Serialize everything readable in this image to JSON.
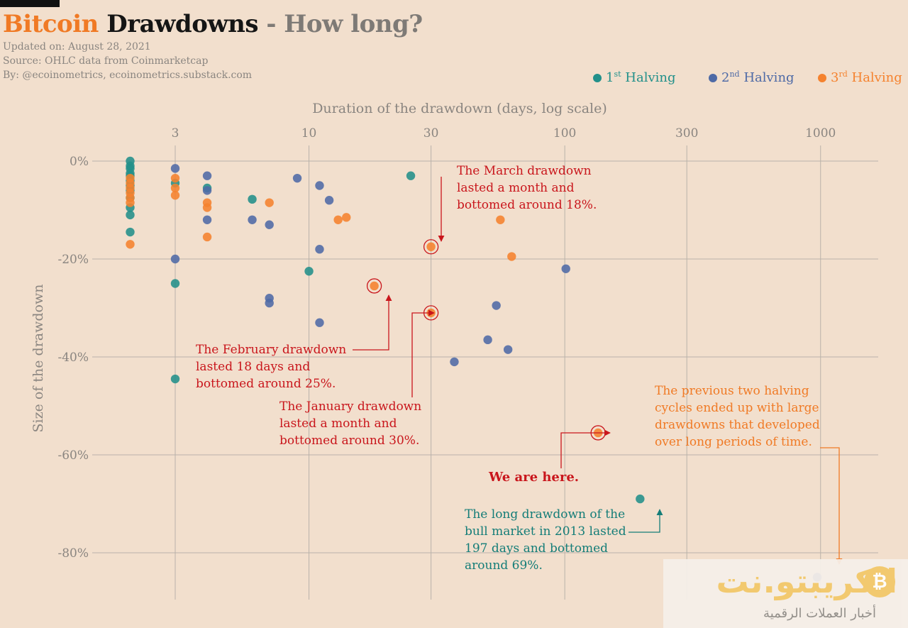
{
  "header": {
    "title_part1": "Bitcoin",
    "title_part2": "Drawdowns",
    "title_part3": "- How long?",
    "updated": "Updated on: August 28, 2021",
    "source": "Source: OHLC data from Coinmarketcap",
    "by": "By: @ecoinometrics, ecoinometrics.substack.com"
  },
  "legend": [
    {
      "num": "1",
      "sup": "st",
      "label": "Halving",
      "color": "#22908a"
    },
    {
      "num": "2",
      "sup": "nd",
      "label": "Halving",
      "color": "#4e6aa6"
    },
    {
      "num": "3",
      "sup": "rd",
      "label": "Halving",
      "color": "#f5822e"
    }
  ],
  "annotations": {
    "march": [
      "The March drawdown",
      "lasted a month and",
      "bottomed around 18%."
    ],
    "february": [
      "The February drawdown",
      "lasted 18 days and",
      "bottomed around 25%."
    ],
    "january": [
      "The January drawdown",
      "lasted a month and",
      "bottomed around 30%."
    ],
    "here": "We are here.",
    "previous": [
      "The previous two halving",
      "cycles ended up with large",
      "drawdowns that developed",
      "over long periods of time."
    ],
    "long2013": [
      "The long drawdown of the",
      "bull market in 2013 lasted",
      "197 days and bottomed",
      "around 69%."
    ]
  },
  "watermark": {
    "text": "الكريبتو.نت",
    "subtext": "أخبار العملات الرقمية",
    "coin": "₿"
  },
  "chart_data": {
    "type": "scatter",
    "xlabel": "Duration of the drawdown (days, log scale)",
    "ylabel": "Size of the drawdown",
    "x_scale": "log",
    "xlim": [
      1.3,
      1200
    ],
    "ylim": [
      -87,
      2
    ],
    "x_ticks": [
      3,
      10,
      30,
      100,
      300,
      1000
    ],
    "x_tick_labels": [
      "3",
      "10",
      "30",
      "100",
      "300",
      "1000"
    ],
    "y_ticks": [
      0,
      -20,
      -40,
      -60,
      -80
    ],
    "y_tick_labels": [
      "0%",
      "-20%",
      "-40%",
      "-60%",
      "-80%"
    ],
    "grid": true,
    "legend_position": "top-right",
    "series": [
      {
        "name": "1st Halving",
        "color": "#22908a",
        "points": [
          [
            2,
            0
          ],
          [
            2,
            -1
          ],
          [
            2,
            -1.5
          ],
          [
            2,
            -2.5
          ],
          [
            2,
            -3
          ],
          [
            2,
            -4
          ],
          [
            2,
            -5
          ],
          [
            2,
            -6
          ],
          [
            2,
            -7.5
          ],
          [
            2,
            -9.5
          ],
          [
            2,
            -11
          ],
          [
            2,
            -14.5
          ],
          [
            3,
            -4.5
          ],
          [
            3,
            -25
          ],
          [
            3,
            -44.5
          ],
          [
            4,
            -5.5
          ],
          [
            6,
            -7.8
          ],
          [
            10,
            -22.5
          ],
          [
            25,
            -3
          ],
          [
            197,
            -69
          ]
        ]
      },
      {
        "name": "2nd Halving",
        "color": "#4e6aa6",
        "points": [
          [
            3,
            -1.5
          ],
          [
            3,
            -20
          ],
          [
            4,
            -3
          ],
          [
            4,
            -6
          ],
          [
            4,
            -12
          ],
          [
            6,
            -12
          ],
          [
            7,
            -13
          ],
          [
            7,
            -28
          ],
          [
            7,
            -29
          ],
          [
            9,
            -3.5
          ],
          [
            11,
            -5
          ],
          [
            11,
            -18
          ],
          [
            11,
            -33
          ],
          [
            12,
            -8
          ],
          [
            37,
            -41
          ],
          [
            50,
            -36.5
          ],
          [
            54,
            -29.5
          ],
          [
            60,
            -38.5
          ],
          [
            101,
            -22
          ],
          [
            970,
            -85
          ]
        ]
      },
      {
        "name": "3rd Halving",
        "color": "#f5822e",
        "points": [
          [
            2,
            -3.5
          ],
          [
            2,
            -4.5
          ],
          [
            2,
            -5.5
          ],
          [
            2,
            -6.5
          ],
          [
            2,
            -7.5
          ],
          [
            2,
            -8.5
          ],
          [
            2,
            -17
          ],
          [
            3,
            -3.5
          ],
          [
            3,
            -5.5
          ],
          [
            3,
            -7
          ],
          [
            4,
            -8.5
          ],
          [
            4,
            -9.5
          ],
          [
            4,
            -15.5
          ],
          [
            7,
            -8.5
          ],
          [
            13,
            -12
          ],
          [
            14,
            -11.5
          ],
          [
            56,
            -12
          ],
          [
            62,
            -19.5
          ],
          [
            18,
            -25.5
          ],
          [
            30,
            -17.5
          ],
          [
            30,
            -31
          ],
          [
            135,
            -55.5
          ]
        ]
      }
    ],
    "highlighted": [
      [
        18,
        -25.5
      ],
      [
        30,
        -17.5
      ],
      [
        30,
        -31
      ],
      [
        135,
        -55.5
      ]
    ]
  }
}
